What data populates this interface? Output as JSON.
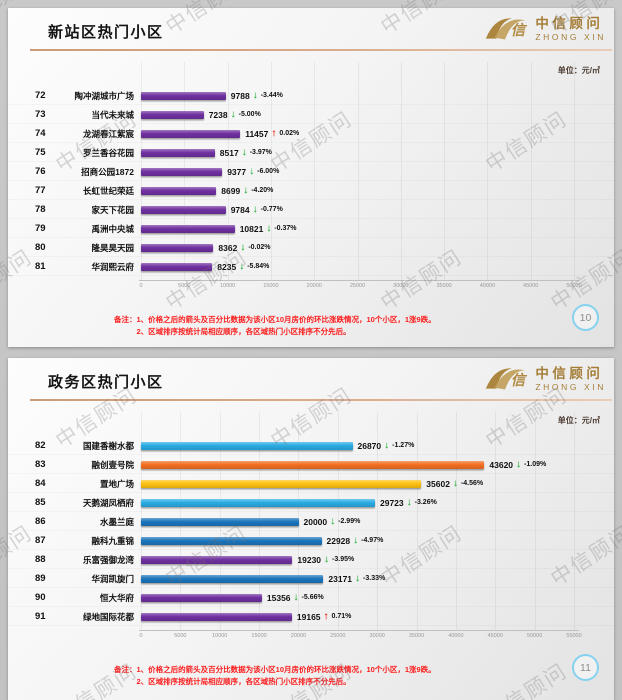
{
  "unit_label": "单位：元/㎡",
  "watermark_text": "中信顾问",
  "logo": {
    "cn": "中信顾问",
    "en": "ZHONG XIN"
  },
  "footnote_label": "备注：",
  "footnote_line1": "1、价格之后的箭头及百分比数据为该小区10月房价的环比涨跌情况，10个小区，1涨9跌。",
  "footnote_line2": "2、区域排序按统计局相应顺序，各区域热门小区排序不分先后。",
  "colors": {
    "purple": "#7030a0",
    "light_blue": "#29abe2",
    "orange": "#f26f21",
    "yellow": "#fec110",
    "blue": "#1b75bc",
    "up_arrow_red": "#e8302a",
    "down_arrow_green": "#3cb54a",
    "gold": "#a57e37",
    "footnote_red": "#fb1d1d"
  },
  "chart_data": [
    {
      "type": "bar",
      "title": "新站区热门小区",
      "page_number": "10",
      "xlabel": "",
      "ylabel": "",
      "xlim": [
        0,
        50000
      ],
      "x_ticks": [
        0,
        5000,
        10000,
        15000,
        20000,
        25000,
        30000,
        35000,
        40000,
        45000,
        50000
      ],
      "grid": true,
      "rows": [
        {
          "rank": "72",
          "name": "陶冲湖城市广场",
          "value": 9788,
          "change": "-3.44%",
          "direction": "down",
          "color": "#7030a0"
        },
        {
          "rank": "73",
          "name": "当代未来城",
          "value": 7238,
          "change": "-5.00%",
          "direction": "down",
          "color": "#7030a0"
        },
        {
          "rank": "74",
          "name": "龙湖春江紫宸",
          "value": 11457,
          "change": "0.02%",
          "direction": "up",
          "color": "#7030a0"
        },
        {
          "rank": "75",
          "name": "罗兰香谷花园",
          "value": 8517,
          "change": "-3.97%",
          "direction": "down",
          "color": "#7030a0"
        },
        {
          "rank": "76",
          "name": "招商公园1872",
          "value": 9377,
          "change": "-6.00%",
          "direction": "down",
          "color": "#7030a0"
        },
        {
          "rank": "77",
          "name": "长虹世纪荣廷",
          "value": 8699,
          "change": "-4.20%",
          "direction": "down",
          "color": "#7030a0"
        },
        {
          "rank": "78",
          "name": "家天下花园",
          "value": 9784,
          "change": "-0.77%",
          "direction": "down",
          "color": "#7030a0"
        },
        {
          "rank": "79",
          "name": "禹洲中央城",
          "value": 10821,
          "change": "-0.37%",
          "direction": "down",
          "color": "#7030a0"
        },
        {
          "rank": "80",
          "name": "隆昊昊天园",
          "value": 8362,
          "change": "-0.02%",
          "direction": "down",
          "color": "#7030a0"
        },
        {
          "rank": "81",
          "name": "华润熙云府",
          "value": 8235,
          "change": "-5.84%",
          "direction": "down",
          "color": "#7030a0"
        }
      ]
    },
    {
      "type": "bar",
      "title": "政务区热门小区",
      "page_number": "11",
      "xlabel": "",
      "ylabel": "",
      "xlim": [
        0,
        55000
      ],
      "x_ticks": [
        0,
        5000,
        10000,
        15000,
        20000,
        25000,
        30000,
        35000,
        40000,
        45000,
        50000,
        55000
      ],
      "grid": true,
      "rows": [
        {
          "rank": "82",
          "name": "国建香榭水都",
          "value": 26870,
          "change": "-1.27%",
          "direction": "down",
          "color": "#29abe2"
        },
        {
          "rank": "83",
          "name": "融创壹号院",
          "value": 43620,
          "change": "-1.09%",
          "direction": "down",
          "color": "#f26f21"
        },
        {
          "rank": "84",
          "name": "置地广场",
          "value": 35602,
          "change": "-4.56%",
          "direction": "down",
          "color": "#fec110"
        },
        {
          "rank": "85",
          "name": "天鹅湖凤栖府",
          "value": 29723,
          "change": "-3.26%",
          "direction": "down",
          "color": "#29abe2"
        },
        {
          "rank": "86",
          "name": "水墨兰庭",
          "value": 20000,
          "change": "-2.99%",
          "direction": "down",
          "color": "#1b75bc"
        },
        {
          "rank": "87",
          "name": "融科九重锦",
          "value": 22928,
          "change": "-4.97%",
          "direction": "down",
          "color": "#1b75bc"
        },
        {
          "rank": "88",
          "name": "乐富强御龙湾",
          "value": 19230,
          "change": "-3.95%",
          "direction": "down",
          "color": "#7030a0"
        },
        {
          "rank": "89",
          "name": "华润凯旋门",
          "value": 23171,
          "change": "-3.33%",
          "direction": "down",
          "color": "#1b75bc"
        },
        {
          "rank": "90",
          "name": "恒大华府",
          "value": 15356,
          "change": "-5.66%",
          "direction": "down",
          "color": "#7030a0"
        },
        {
          "rank": "91",
          "name": "绿地国际花都",
          "value": 19165,
          "change": "0.71%",
          "direction": "up",
          "color": "#7030a0"
        }
      ]
    }
  ]
}
